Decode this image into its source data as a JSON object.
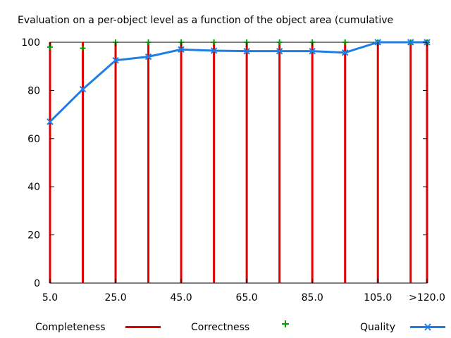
{
  "chart_data": {
    "type": "line",
    "title": "Evaluation on a per-object level as a function of the object area (cumulative",
    "xlabel": "",
    "ylabel": "",
    "x": [
      5,
      15,
      25,
      35,
      45,
      55,
      65,
      75,
      85,
      95,
      105,
      115,
      120
    ],
    "xlim": [
      5,
      120
    ],
    "ylim": [
      0,
      100
    ],
    "x_ticks": [
      {
        "value": 5,
        "label": "5.0"
      },
      {
        "value": 25,
        "label": "25.0"
      },
      {
        "value": 45,
        "label": "45.0"
      },
      {
        "value": 65,
        "label": "65.0"
      },
      {
        "value": 85,
        "label": "85.0"
      },
      {
        "value": 105,
        "label": "105.0"
      },
      {
        "value": 120,
        "label": ">120.0"
      }
    ],
    "y_ticks": [
      {
        "value": 0,
        "label": "0"
      },
      {
        "value": 20,
        "label": "20"
      },
      {
        "value": 40,
        "label": "40"
      },
      {
        "value": 60,
        "label": "60"
      },
      {
        "value": 80,
        "label": "80"
      },
      {
        "value": 100,
        "label": "100"
      }
    ],
    "grid": false,
    "legend_position": "bottom",
    "series": [
      {
        "name": "Completeness",
        "style": "impulses",
        "color": "#e00000",
        "values": [
          100,
          100,
          100,
          100,
          100,
          100,
          100,
          100,
          100,
          100,
          100,
          100,
          100
        ]
      },
      {
        "name": "Correctness",
        "style": "points",
        "color": "#00a000",
        "values": [
          98,
          97.5,
          100,
          100,
          100,
          100,
          100,
          100,
          100,
          100,
          100,
          100,
          100
        ]
      },
      {
        "name": "Quality",
        "style": "linespoints",
        "color": "#1e7ee6",
        "values": [
          67,
          80.5,
          92.5,
          94,
          97,
          96.5,
          96.3,
          96.3,
          96.3,
          95.7,
          100,
          100,
          100
        ]
      }
    ]
  }
}
